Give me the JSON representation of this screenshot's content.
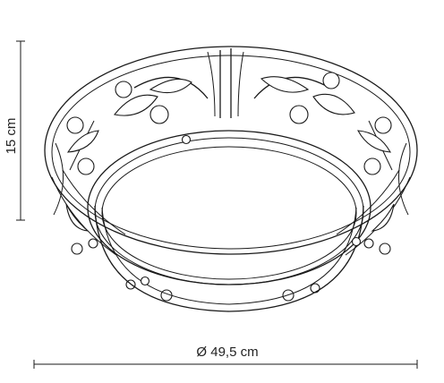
{
  "product": {
    "height_label": "15 cm",
    "diameter_label": "Ø 49,5 cm"
  },
  "colors": {
    "line": "#1a1a1a",
    "text": "#222222",
    "background": "#ffffff"
  }
}
